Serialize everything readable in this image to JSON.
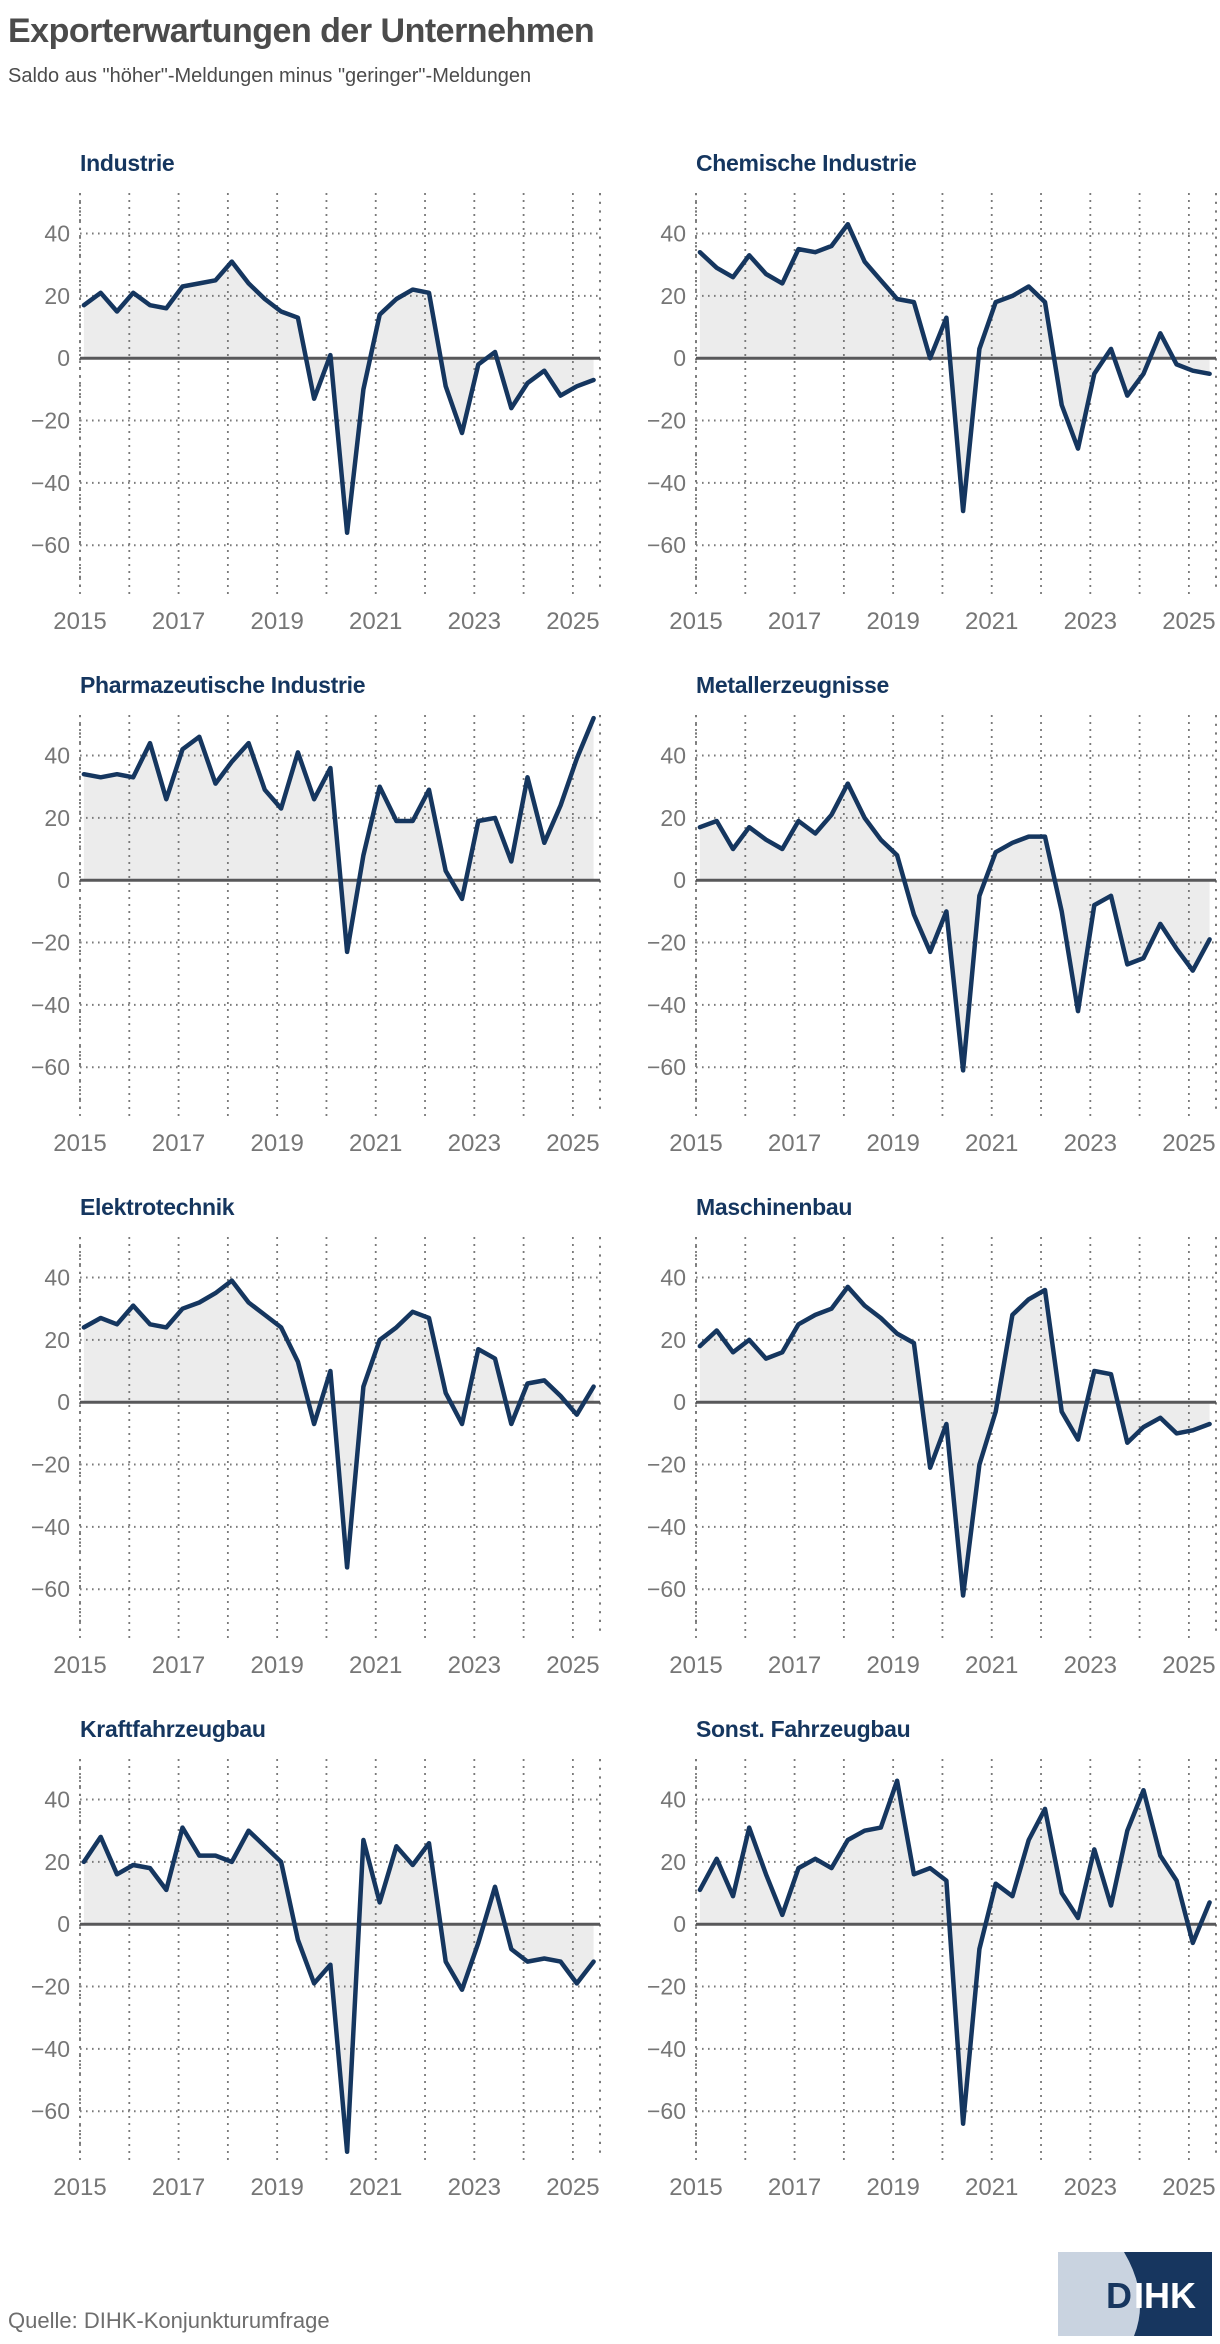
{
  "header": {
    "title": "Exporterwartungen der Unternehmen",
    "subtitle": "Saldo aus \"höher\"-Meldungen minus \"geringer\"-Meldungen"
  },
  "colors": {
    "navy": "#15365f",
    "area_fill": "#ececec",
    "heading_gray": "#4b4b4b",
    "tick_label_gray": "#767676",
    "grid_gray": "#7a7a7a",
    "zero_line_gray": "#58585a",
    "logo_dark": "#17365f",
    "logo_light": "#c9d3e0"
  },
  "axis": {
    "xlim": [
      2015,
      2025.55
    ],
    "ylim": [
      -75,
      53
    ],
    "x_grid": [
      2015,
      2016,
      2017,
      2018,
      2019,
      2020,
      2021,
      2022,
      2023,
      2024,
      2025
    ],
    "x_ticks": [
      2015,
      2017,
      2019,
      2021,
      2023,
      2025
    ],
    "y_ticks": [
      40,
      20,
      0,
      -20,
      -40,
      -60
    ]
  },
  "chart_data": [
    {
      "type": "line",
      "title": "Industrie",
      "x": [
        2015.08,
        2015.42,
        2015.75,
        2016.08,
        2016.42,
        2016.75,
        2017.08,
        2017.42,
        2017.75,
        2018.08,
        2018.42,
        2018.75,
        2019.08,
        2019.42,
        2019.75,
        2020.08,
        2020.42,
        2020.75,
        2021.08,
        2021.42,
        2021.75,
        2022.08,
        2022.42,
        2022.75,
        2023.08,
        2023.42,
        2023.75,
        2024.08,
        2024.42,
        2024.75,
        2025.08,
        2025.42
      ],
      "values": [
        17,
        21,
        15,
        21,
        17,
        16,
        23,
        24,
        25,
        31,
        24,
        19,
        15,
        13,
        -13,
        1,
        -56,
        -10,
        14,
        19,
        22,
        21,
        -9,
        -24,
        -2,
        2,
        -16,
        -8,
        -4,
        -12,
        -9,
        -7
      ]
    },
    {
      "type": "line",
      "title": "Chemische Industrie",
      "x": [
        2015.08,
        2015.42,
        2015.75,
        2016.08,
        2016.42,
        2016.75,
        2017.08,
        2017.42,
        2017.75,
        2018.08,
        2018.42,
        2018.75,
        2019.08,
        2019.42,
        2019.75,
        2020.08,
        2020.42,
        2020.75,
        2021.08,
        2021.42,
        2021.75,
        2022.08,
        2022.42,
        2022.75,
        2023.08,
        2023.42,
        2023.75,
        2024.08,
        2024.42,
        2024.75,
        2025.08,
        2025.42
      ],
      "values": [
        34,
        29,
        26,
        33,
        27,
        24,
        35,
        34,
        36,
        43,
        31,
        25,
        19,
        18,
        0,
        13,
        -49,
        3,
        18,
        20,
        23,
        18,
        -15,
        -29,
        -5,
        3,
        -12,
        -5,
        8,
        -2,
        -4,
        -5
      ]
    },
    {
      "type": "line",
      "title": "Pharmazeutische Industrie",
      "x": [
        2015.08,
        2015.42,
        2015.75,
        2016.08,
        2016.42,
        2016.75,
        2017.08,
        2017.42,
        2017.75,
        2018.08,
        2018.42,
        2018.75,
        2019.08,
        2019.42,
        2019.75,
        2020.08,
        2020.42,
        2020.75,
        2021.08,
        2021.42,
        2021.75,
        2022.08,
        2022.42,
        2022.75,
        2023.08,
        2023.42,
        2023.75,
        2024.08,
        2024.42,
        2024.75,
        2025.08,
        2025.42
      ],
      "values": [
        34,
        33,
        34,
        33,
        44,
        26,
        42,
        46,
        31,
        38,
        44,
        29,
        23,
        41,
        26,
        36,
        -23,
        8,
        30,
        19,
        19,
        29,
        3,
        -6,
        19,
        20,
        6,
        33,
        12,
        24,
        39,
        52
      ]
    },
    {
      "type": "line",
      "title": "Metallerzeugnisse",
      "x": [
        2015.08,
        2015.42,
        2015.75,
        2016.08,
        2016.42,
        2016.75,
        2017.08,
        2017.42,
        2017.75,
        2018.08,
        2018.42,
        2018.75,
        2019.08,
        2019.42,
        2019.75,
        2020.08,
        2020.42,
        2020.75,
        2021.08,
        2021.42,
        2021.75,
        2022.08,
        2022.42,
        2022.75,
        2023.08,
        2023.42,
        2023.75,
        2024.08,
        2024.42,
        2024.75,
        2025.08,
        2025.42
      ],
      "values": [
        17,
        19,
        10,
        17,
        13,
        10,
        19,
        15,
        21,
        31,
        20,
        13,
        8,
        -11,
        -23,
        -10,
        -61,
        -5,
        9,
        12,
        14,
        14,
        -10,
        -42,
        -8,
        -5,
        -27,
        -25,
        -14,
        -22,
        -29,
        -19
      ]
    },
    {
      "type": "line",
      "title": "Elektrotechnik",
      "x": [
        2015.08,
        2015.42,
        2015.75,
        2016.08,
        2016.42,
        2016.75,
        2017.08,
        2017.42,
        2017.75,
        2018.08,
        2018.42,
        2018.75,
        2019.08,
        2019.42,
        2019.75,
        2020.08,
        2020.42,
        2020.75,
        2021.08,
        2021.42,
        2021.75,
        2022.08,
        2022.42,
        2022.75,
        2023.08,
        2023.42,
        2023.75,
        2024.08,
        2024.42,
        2024.75,
        2025.08,
        2025.42
      ],
      "values": [
        24,
        27,
        25,
        31,
        25,
        24,
        30,
        32,
        35,
        39,
        32,
        28,
        24,
        13,
        -7,
        10,
        -53,
        5,
        20,
        24,
        29,
        27,
        3,
        -7,
        17,
        14,
        -7,
        6,
        7,
        2,
        -4,
        5
      ]
    },
    {
      "type": "line",
      "title": "Maschinenbau",
      "x": [
        2015.08,
        2015.42,
        2015.75,
        2016.08,
        2016.42,
        2016.75,
        2017.08,
        2017.42,
        2017.75,
        2018.08,
        2018.42,
        2018.75,
        2019.08,
        2019.42,
        2019.75,
        2020.08,
        2020.42,
        2020.75,
        2021.08,
        2021.42,
        2021.75,
        2022.08,
        2022.42,
        2022.75,
        2023.08,
        2023.42,
        2023.75,
        2024.08,
        2024.42,
        2024.75,
        2025.08,
        2025.42
      ],
      "values": [
        18,
        23,
        16,
        20,
        14,
        16,
        25,
        28,
        30,
        37,
        31,
        27,
        22,
        19,
        -21,
        -7,
        -62,
        -20,
        -3,
        28,
        33,
        36,
        -3,
        -12,
        10,
        9,
        -13,
        -8,
        -5,
        -10,
        -9,
        -7
      ]
    },
    {
      "type": "line",
      "title": "Kraftfahrzeugbau",
      "x": [
        2015.08,
        2015.42,
        2015.75,
        2016.08,
        2016.42,
        2016.75,
        2017.08,
        2017.42,
        2017.75,
        2018.08,
        2018.42,
        2018.75,
        2019.08,
        2019.42,
        2019.75,
        2020.08,
        2020.42,
        2020.75,
        2021.08,
        2021.42,
        2021.75,
        2022.08,
        2022.42,
        2022.75,
        2023.08,
        2023.42,
        2023.75,
        2024.08,
        2024.42,
        2024.75,
        2025.08,
        2025.42
      ],
      "values": [
        20,
        28,
        16,
        19,
        18,
        11,
        31,
        22,
        22,
        20,
        30,
        25,
        20,
        -5,
        -19,
        -13,
        -73,
        27,
        7,
        25,
        19,
        26,
        -12,
        -21,
        -6,
        12,
        -8,
        -12,
        -11,
        -12,
        -19,
        -12
      ]
    },
    {
      "type": "line",
      "title": "Sonst. Fahrzeugbau",
      "x": [
        2015.08,
        2015.42,
        2015.75,
        2016.08,
        2016.42,
        2016.75,
        2017.08,
        2017.42,
        2017.75,
        2018.08,
        2018.42,
        2018.75,
        2019.08,
        2019.42,
        2019.75,
        2020.08,
        2020.42,
        2020.75,
        2021.08,
        2021.42,
        2021.75,
        2022.08,
        2022.42,
        2022.75,
        2023.08,
        2023.42,
        2023.75,
        2024.08,
        2024.42,
        2024.75,
        2025.08,
        2025.42
      ],
      "values": [
        11,
        21,
        9,
        31,
        16,
        3,
        18,
        21,
        18,
        27,
        30,
        31,
        46,
        16,
        18,
        14,
        -64,
        -8,
        13,
        9,
        27,
        37,
        10,
        2,
        24,
        6,
        30,
        43,
        22,
        14,
        -6,
        7
      ]
    }
  ],
  "footer": {
    "source": "Quelle: DIHK-Konjunkturumfrage",
    "logo_text_dark": "D",
    "logo_text_light": "IHK"
  }
}
